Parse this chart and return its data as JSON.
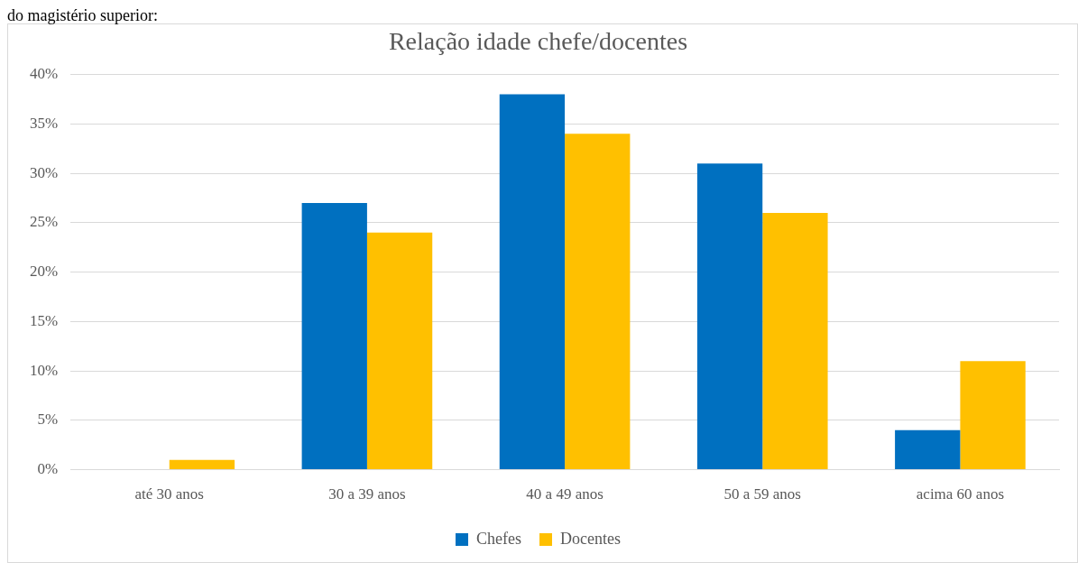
{
  "chart_data": {
    "type": "bar",
    "title": "Relação idade chefe/docentes",
    "annotations": [
      "do magistério superior:"
    ],
    "categories": [
      "até 30 anos",
      "30 a 39 anos",
      "40 a 49 anos",
      "50 a 59 anos",
      "acima 60 anos"
    ],
    "series": [
      {
        "name": "Chefes",
        "color": "#0070c0",
        "values": [
          0,
          27,
          38,
          31,
          4
        ]
      },
      {
        "name": "Docentes",
        "color": "#ffc000",
        "values": [
          1,
          24,
          34,
          26,
          11
        ]
      }
    ],
    "ylim": [
      0,
      40
    ],
    "yticks": [
      {
        "value": 0,
        "label": "0%"
      },
      {
        "value": 5,
        "label": "5%"
      },
      {
        "value": 10,
        "label": "10%"
      },
      {
        "value": 15,
        "label": "15%"
      },
      {
        "value": 20,
        "label": "20%"
      },
      {
        "value": 25,
        "label": "25%"
      },
      {
        "value": 30,
        "label": "30%"
      },
      {
        "value": 35,
        "label": "35%"
      },
      {
        "value": 40,
        "label": "40%"
      }
    ],
    "grid": "y",
    "legend": "bottom"
  }
}
